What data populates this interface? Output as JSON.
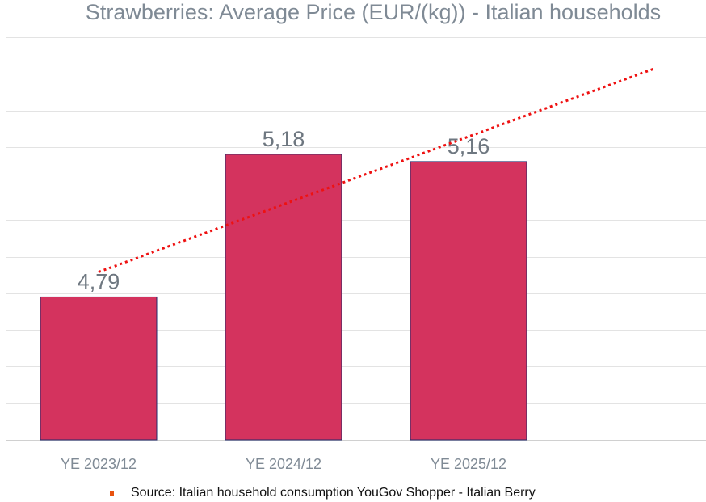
{
  "chart_data": {
    "type": "bar",
    "title": "Strawberries: Average Price (EUR/(kg)) - Italian households",
    "categories": [
      "YE 2023/12",
      "YE 2024/12",
      "YE 2025/12"
    ],
    "values": [
      4.79,
      5.18,
      5.16
    ],
    "value_labels": [
      "4,79",
      "5,18",
      "5,16"
    ],
    "xlabel": "",
    "ylabel": "",
    "ylim": [
      4.4,
      5.5
    ],
    "grid_step": 0.1,
    "grid": true,
    "bar_color": "#d4335e",
    "bar_edge_color": "#1f2a6b",
    "trendline": {
      "type": "linear",
      "color": "#ee1111",
      "style": "dotted",
      "forward_periods": 1
    }
  },
  "source": {
    "text": "Source: Italian household consumption YouGov Shopper - Italian Berry",
    "bullet_color": "#e8520f"
  }
}
